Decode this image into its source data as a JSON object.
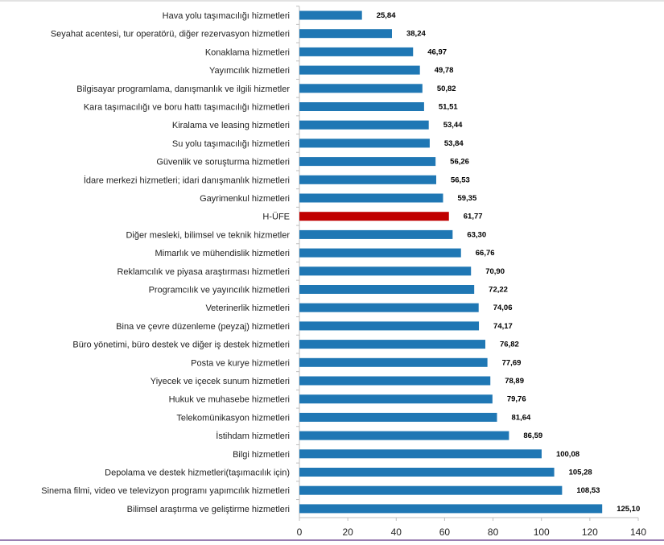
{
  "chart_data": {
    "type": "bar",
    "orientation": "horizontal",
    "title": "",
    "xlabel": "",
    "ylabel": "",
    "xlim": [
      0,
      140
    ],
    "x_ticks": [
      "0",
      "20",
      "40",
      "60",
      "80",
      "100",
      "120",
      "140"
    ],
    "grid": false,
    "legend": "none",
    "categories": [
      "Hava yolu taşımacılığı hizmetleri",
      "Seyahat acentesi, tur operatörü, diğer rezervasyon hizmetleri",
      "Konaklama hizmetleri",
      "Yayımcılık hizmetleri",
      "Bilgisayar programlama, danışmanlık ve ilgili hizmetler",
      "Kara taşımacılığı ve boru hattı taşımacılığı hizmetleri",
      "Kiralama ve leasing hizmetleri",
      "Su yolu taşımacılığı hizmetleri",
      "Güvenlik ve soruşturma hizmetleri",
      "İdare merkezi hizmetleri; idari danışmanlık hizmetleri",
      "Gayrimenkul hizmetleri",
      "H-ÜFE",
      "Diğer mesleki, bilimsel ve teknik hizmetler",
      "Mimarlık ve mühendislik hizmetleri",
      "Reklamcılık ve piyasa araştırması hizmetleri",
      "Programcılık ve yayıncılık hizmetleri",
      "Veterinerlik hizmetleri",
      "Bina ve çevre düzenleme (peyzaj) hizmetleri",
      "Büro yönetimi, büro destek ve diğer iş destek hizmetleri",
      "Posta ve kurye hizmetleri",
      "Yiyecek ve içecek sunum hizmetleri",
      "Hukuk ve muhasebe hizmetleri",
      "Telekomünikasyon hizmetleri",
      "İstihdam hizmetleri",
      "Bilgi hizmetleri",
      "Depolama ve destek hizmetleri(taşımacılık için)",
      "Sinema filmi, video ve televizyon programı yapımcılık hizmetleri",
      "Bilimsel araştırma ve geliştirme hizmetleri"
    ],
    "values": [
      25.84,
      38.24,
      46.97,
      49.78,
      50.82,
      51.51,
      53.44,
      53.84,
      56.26,
      56.53,
      59.35,
      61.77,
      63.3,
      66.76,
      70.9,
      72.22,
      74.06,
      74.17,
      76.82,
      77.69,
      78.89,
      79.76,
      81.64,
      86.59,
      100.08,
      105.28,
      108.53,
      125.1
    ],
    "value_labels": [
      "25,84",
      "38,24",
      "46,97",
      "49,78",
      "50,82",
      "51,51",
      "53,44",
      "53,84",
      "56,26",
      "56,53",
      "59,35",
      "61,77",
      "63,30",
      "66,76",
      "70,90",
      "72,22",
      "74,06",
      "74,17",
      "76,82",
      "77,69",
      "78,89",
      "79,76",
      "81,64",
      "86,59",
      "100,08",
      "105,28",
      "108,53",
      "125,10"
    ],
    "highlight_category": "H-ÜFE",
    "colors": {
      "bar": "#1f77b4",
      "highlight": "#c00000",
      "axis": "#bfbfbf",
      "label_text": "#222222",
      "value_text": "#000000"
    }
  }
}
